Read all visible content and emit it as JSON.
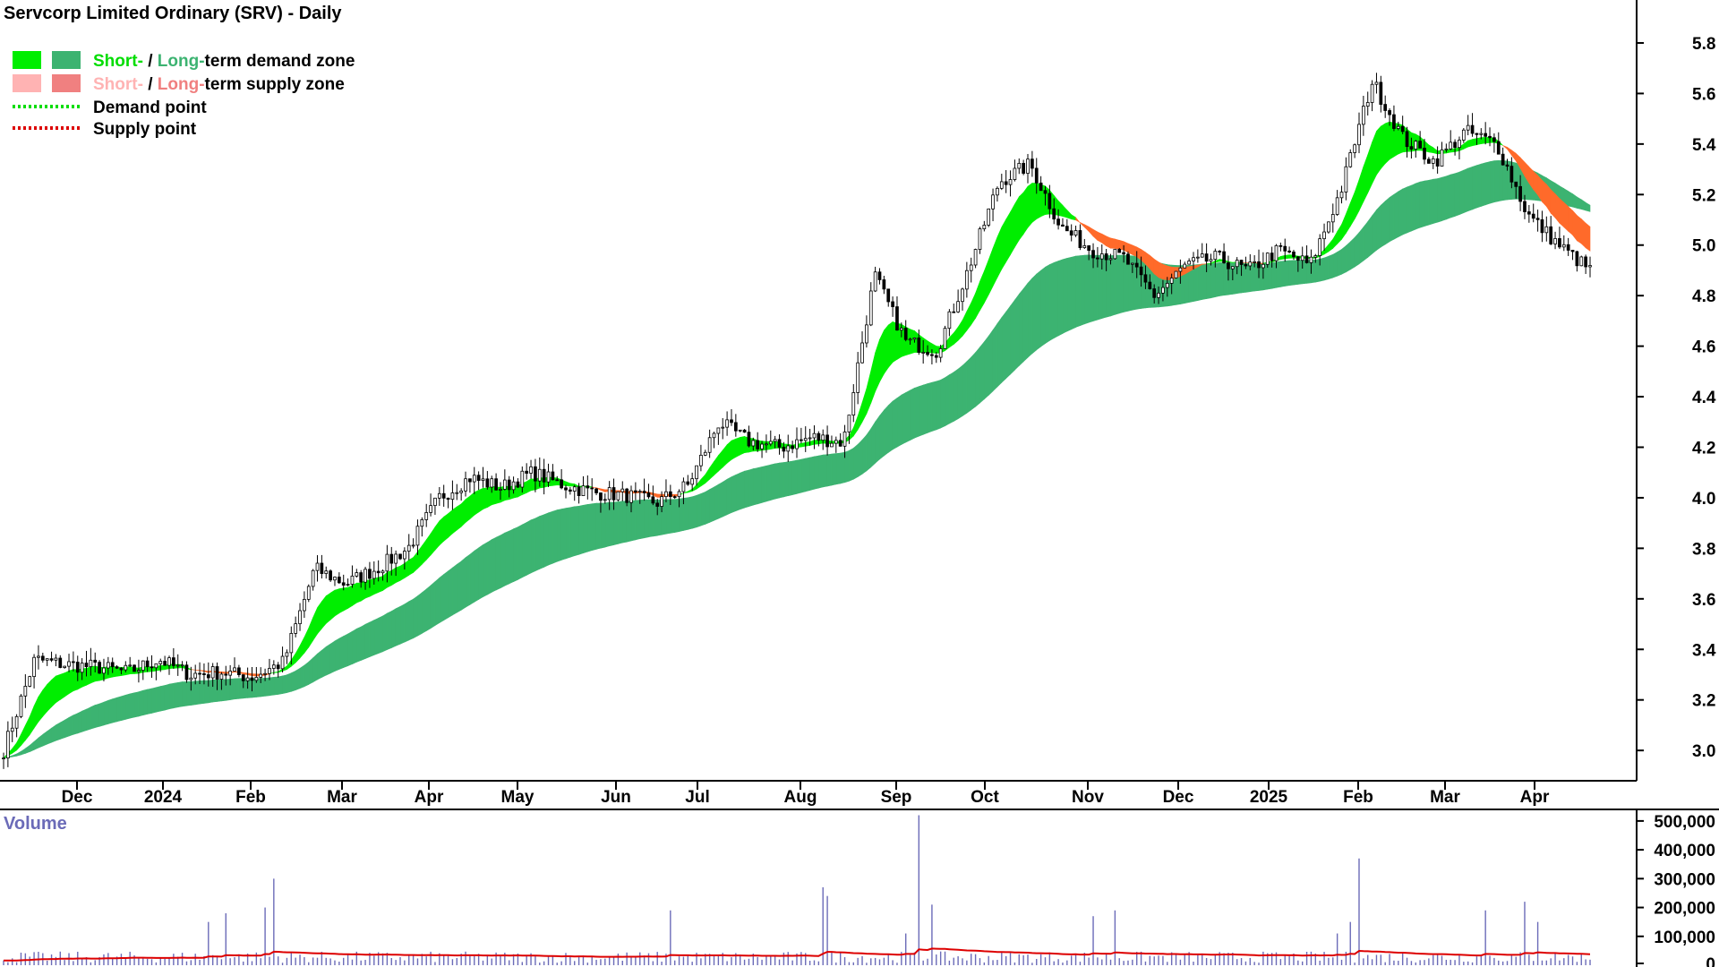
{
  "chart_data": {
    "type": "candlestick",
    "title": "Servcorp Limited Ordinary (SRV) - Daily",
    "legend": {
      "rows": [
        {
          "short": "Short-",
          "sep": " / ",
          "long": "Long-",
          "rest": "term demand zone"
        },
        {
          "short": "Short-",
          "sep": " / ",
          "long": "Long-",
          "rest": "term supply zone"
        },
        {
          "rest": "Demand point"
        },
        {
          "rest": "Supply point"
        }
      ]
    },
    "price_axis": {
      "ylim": [
        2.88,
        5.97
      ],
      "ticks": [
        "5.8",
        "5.6",
        "5.4",
        "5.2",
        "5.0",
        "4.8",
        "4.6",
        "4.4",
        "4.2",
        "4.0",
        "3.8",
        "3.6",
        "3.4",
        "3.2",
        "3.0"
      ]
    },
    "volume_axis": {
      "label": "Volume",
      "ylim": [
        0,
        540000
      ],
      "ticks": [
        "500,000",
        "400,000",
        "300,000",
        "200,000",
        "100,000",
        "0"
      ]
    },
    "months": [
      {
        "label": "Dec",
        "major": false
      },
      {
        "label": "2024",
        "major": true
      },
      {
        "label": "Feb",
        "major": false
      },
      {
        "label": "Mar",
        "major": false
      },
      {
        "label": "Apr",
        "major": false
      },
      {
        "label": "May",
        "major": false
      },
      {
        "label": "Jun",
        "major": false
      },
      {
        "label": "Jul",
        "major": false
      },
      {
        "label": "Aug",
        "major": false
      },
      {
        "label": "Sep",
        "major": false
      },
      {
        "label": "Oct",
        "major": false
      },
      {
        "label": "Nov",
        "major": false
      },
      {
        "label": "Dec",
        "major": false
      },
      {
        "label": "2025",
        "major": true
      },
      {
        "label": "Feb",
        "major": false
      },
      {
        "label": "Mar",
        "major": false
      },
      {
        "label": "Apr",
        "major": false
      }
    ],
    "price_path": [
      3.0,
      3.36,
      3.34,
      3.33,
      3.31,
      3.36,
      3.3,
      3.31,
      3.29,
      3.35,
      3.72,
      3.66,
      3.72,
      3.8,
      4.0,
      4.08,
      4.04,
      4.1,
      4.05,
      4.02,
      4.01,
      3.98,
      4.05,
      4.3,
      4.22,
      4.2,
      4.24,
      4.22,
      4.88,
      4.62,
      4.58,
      4.9,
      5.25,
      5.32,
      5.07,
      4.98,
      4.95,
      4.8,
      4.92,
      4.95,
      4.9,
      4.98,
      4.92,
      5.22,
      5.65,
      5.42,
      5.33,
      5.45,
      5.4,
      5.12,
      5.0,
      4.9
    ],
    "volume_baseline": 28000,
    "volume_spikes": [
      {
        "at": 0.14,
        "v": 180000
      },
      {
        "at": 0.13,
        "v": 95000
      },
      {
        "at": 0.17,
        "v": 300000
      },
      {
        "at": 0.165,
        "v": 200000
      },
      {
        "at": 0.129,
        "v": 150000
      },
      {
        "at": 0.42,
        "v": 190000
      },
      {
        "at": 0.517,
        "v": 270000
      },
      {
        "at": 0.52,
        "v": 240000
      },
      {
        "at": 0.578,
        "v": 520000
      },
      {
        "at": 0.585,
        "v": 210000
      },
      {
        "at": 0.57,
        "v": 110000
      },
      {
        "at": 0.7,
        "v": 190000
      },
      {
        "at": 0.687,
        "v": 170000
      },
      {
        "at": 0.855,
        "v": 370000
      },
      {
        "at": 0.85,
        "v": 150000
      },
      {
        "at": 0.84,
        "v": 110000
      },
      {
        "at": 0.96,
        "v": 220000
      },
      {
        "at": 0.935,
        "v": 190000
      },
      {
        "at": 0.968,
        "v": 150000
      }
    ],
    "colors": {
      "short_demand": "#00ee00",
      "long_demand": "#3cb371",
      "short_supply": "#ffb3b3",
      "long_supply": "#f08080",
      "supply_fill": "#ff6a2a",
      "demand_point": "#00dd00",
      "supply_point": "#dd0000",
      "volume_bar": "#6b6bb8",
      "volume_ma": "#dd0000"
    }
  }
}
